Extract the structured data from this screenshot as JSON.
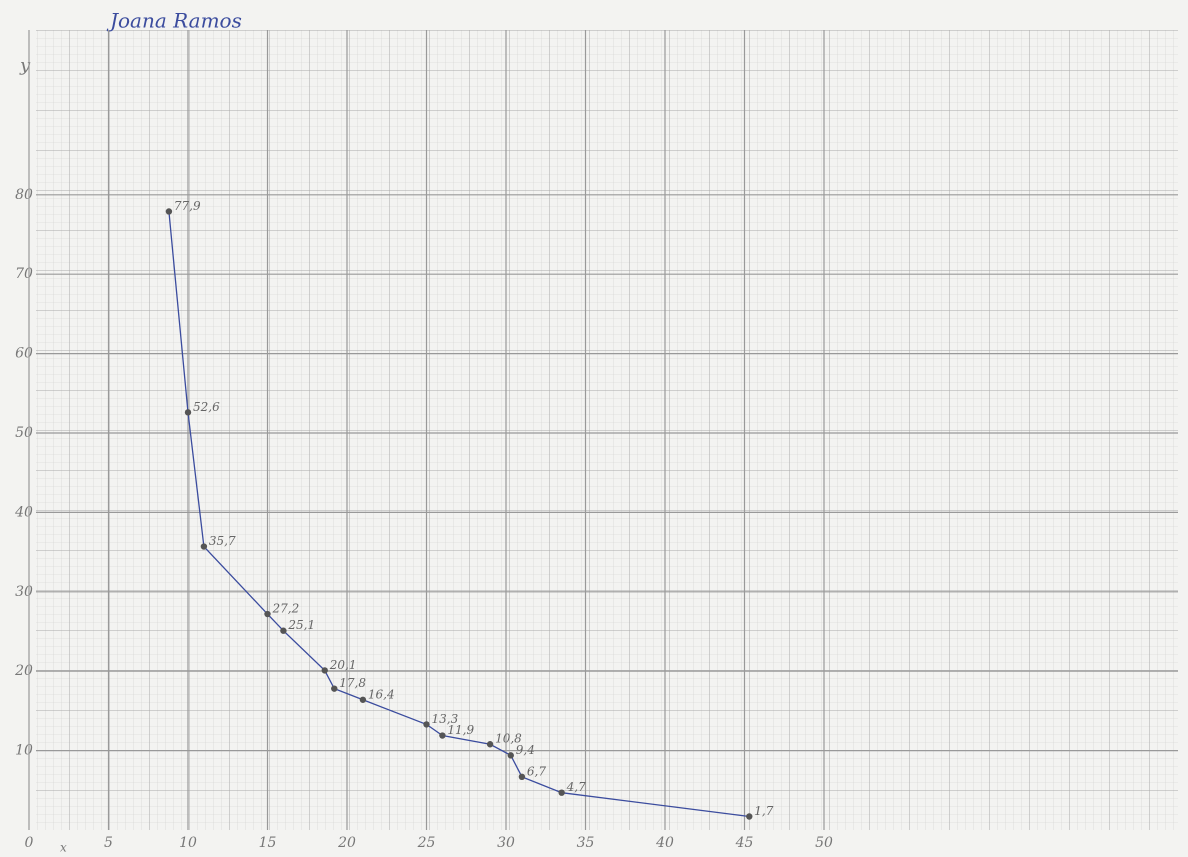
{
  "chart_data": {
    "type": "line",
    "title": "Joana Ramos",
    "y_label": "y",
    "x_label": "x",
    "x": [
      8.8,
      10,
      11,
      15,
      16,
      18.6,
      19.2,
      21,
      25,
      26,
      29,
      30.3,
      31,
      33.5,
      45.3
    ],
    "series": [
      {
        "color": "#3b4c9e",
        "values": [
          77.9,
          52.6,
          35.7,
          27.2,
          25.1,
          20.1,
          17.8,
          16.4,
          13.3,
          11.9,
          10.8,
          9.4,
          6.7,
          4.7,
          1.7
        ],
        "value_labels": [
          "77,9",
          "52,6",
          "35,7",
          "27,2",
          "25,1",
          "20,1",
          "17,8",
          "16,4",
          "13,3",
          "11,9",
          "10,8",
          "9,4",
          "6,7",
          "4,7",
          "1,7"
        ]
      }
    ],
    "xlim": [
      0,
      72
    ],
    "ylim": [
      0,
      100
    ],
    "xticks": [
      0,
      5,
      10,
      15,
      20,
      25,
      30,
      35,
      40,
      45,
      50
    ],
    "yticks": [
      10,
      20,
      30,
      40,
      50,
      60,
      70,
      80
    ],
    "grid": true
  }
}
